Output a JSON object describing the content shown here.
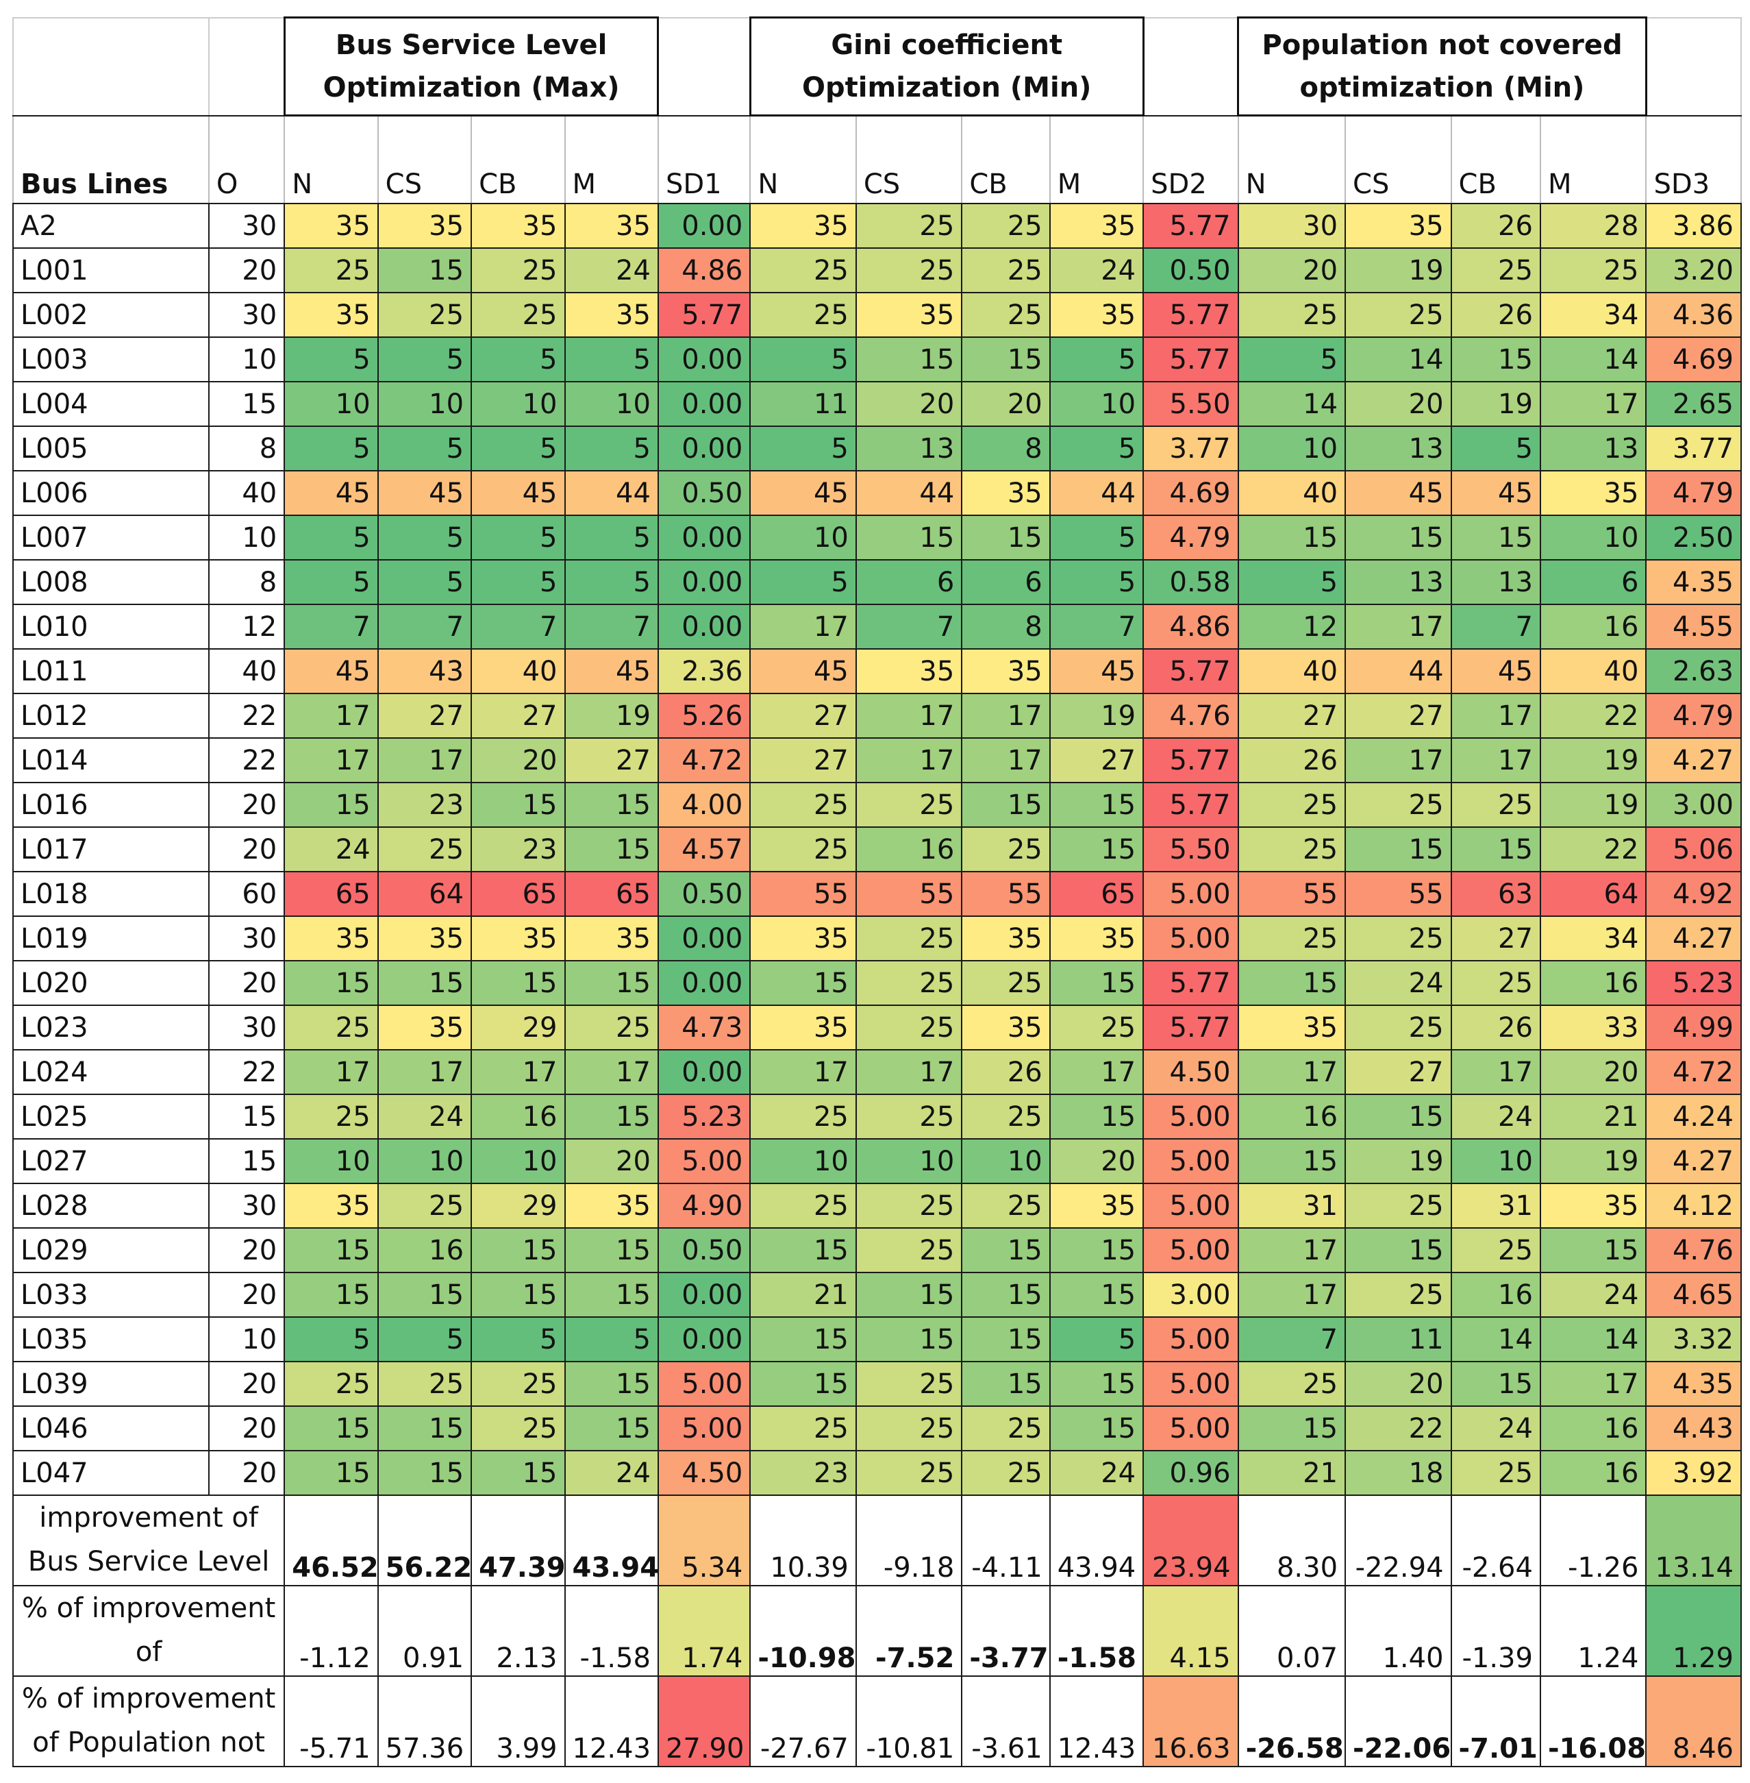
{
  "groups": {
    "bsl": "Bus Service Level Optimization (Max)",
    "gini": "Gini coefficient Optimization (Min)",
    "pop": "Population not covered optimization (Min)"
  },
  "columns": [
    "Bus Lines",
    "O",
    "N",
    "CS",
    "CB",
    "M",
    "SD1",
    "N",
    "CS",
    "CB",
    "M",
    "SD2",
    "N",
    "CS",
    "CB",
    "M",
    "SD3"
  ],
  "rows": [
    [
      "A2",
      "30",
      "35",
      "35",
      "35",
      "35",
      "0.00",
      "35",
      "25",
      "25",
      "35",
      "5.77",
      "30",
      "35",
      "26",
      "28",
      "3.86"
    ],
    [
      "L001",
      "20",
      "25",
      "15",
      "25",
      "24",
      "4.86",
      "25",
      "25",
      "25",
      "24",
      "0.50",
      "20",
      "19",
      "25",
      "25",
      "3.20"
    ],
    [
      "L002",
      "30",
      "35",
      "25",
      "25",
      "35",
      "5.77",
      "25",
      "35",
      "25",
      "35",
      "5.77",
      "25",
      "25",
      "26",
      "34",
      "4.36"
    ],
    [
      "L003",
      "10",
      "5",
      "5",
      "5",
      "5",
      "0.00",
      "5",
      "15",
      "15",
      "5",
      "5.77",
      "5",
      "14",
      "15",
      "14",
      "4.69"
    ],
    [
      "L004",
      "15",
      "10",
      "10",
      "10",
      "10",
      "0.00",
      "11",
      "20",
      "20",
      "10",
      "5.50",
      "14",
      "20",
      "19",
      "17",
      "2.65"
    ],
    [
      "L005",
      "8",
      "5",
      "5",
      "5",
      "5",
      "0.00",
      "5",
      "13",
      "8",
      "5",
      "3.77",
      "10",
      "13",
      "5",
      "13",
      "3.77"
    ],
    [
      "L006",
      "40",
      "45",
      "45",
      "45",
      "44",
      "0.50",
      "45",
      "44",
      "35",
      "44",
      "4.69",
      "40",
      "45",
      "45",
      "35",
      "4.79"
    ],
    [
      "L007",
      "10",
      "5",
      "5",
      "5",
      "5",
      "0.00",
      "10",
      "15",
      "15",
      "5",
      "4.79",
      "15",
      "15",
      "15",
      "10",
      "2.50"
    ],
    [
      "L008",
      "8",
      "5",
      "5",
      "5",
      "5",
      "0.00",
      "5",
      "6",
      "6",
      "5",
      "0.58",
      "5",
      "13",
      "13",
      "6",
      "4.35"
    ],
    [
      "L010",
      "12",
      "7",
      "7",
      "7",
      "7",
      "0.00",
      "17",
      "7",
      "8",
      "7",
      "4.86",
      "12",
      "17",
      "7",
      "16",
      "4.55"
    ],
    [
      "L011",
      "40",
      "45",
      "43",
      "40",
      "45",
      "2.36",
      "45",
      "35",
      "35",
      "45",
      "5.77",
      "40",
      "44",
      "45",
      "40",
      "2.63"
    ],
    [
      "L012",
      "22",
      "17",
      "27",
      "27",
      "19",
      "5.26",
      "27",
      "17",
      "17",
      "19",
      "4.76",
      "27",
      "27",
      "17",
      "22",
      "4.79"
    ],
    [
      "L014",
      "22",
      "17",
      "17",
      "20",
      "27",
      "4.72",
      "27",
      "17",
      "17",
      "27",
      "5.77",
      "26",
      "17",
      "17",
      "19",
      "4.27"
    ],
    [
      "L016",
      "20",
      "15",
      "23",
      "15",
      "15",
      "4.00",
      "25",
      "25",
      "15",
      "15",
      "5.77",
      "25",
      "25",
      "25",
      "19",
      "3.00"
    ],
    [
      "L017",
      "20",
      "24",
      "25",
      "23",
      "15",
      "4.57",
      "25",
      "16",
      "25",
      "15",
      "5.50",
      "25",
      "15",
      "15",
      "22",
      "5.06"
    ],
    [
      "L018",
      "60",
      "65",
      "64",
      "65",
      "65",
      "0.50",
      "55",
      "55",
      "55",
      "65",
      "5.00",
      "55",
      "55",
      "63",
      "64",
      "4.92"
    ],
    [
      "L019",
      "30",
      "35",
      "35",
      "35",
      "35",
      "0.00",
      "35",
      "25",
      "35",
      "35",
      "5.00",
      "25",
      "25",
      "27",
      "34",
      "4.27"
    ],
    [
      "L020",
      "20",
      "15",
      "15",
      "15",
      "15",
      "0.00",
      "15",
      "25",
      "25",
      "15",
      "5.77",
      "15",
      "24",
      "25",
      "16",
      "5.23"
    ],
    [
      "L023",
      "30",
      "25",
      "35",
      "29",
      "25",
      "4.73",
      "35",
      "25",
      "35",
      "25",
      "5.77",
      "35",
      "25",
      "26",
      "33",
      "4.99"
    ],
    [
      "L024",
      "22",
      "17",
      "17",
      "17",
      "17",
      "0.00",
      "17",
      "17",
      "26",
      "17",
      "4.50",
      "17",
      "27",
      "17",
      "20",
      "4.72"
    ],
    [
      "L025",
      "15",
      "25",
      "24",
      "16",
      "15",
      "5.23",
      "25",
      "25",
      "25",
      "15",
      "5.00",
      "16",
      "15",
      "24",
      "21",
      "4.24"
    ],
    [
      "L027",
      "15",
      "10",
      "10",
      "10",
      "20",
      "5.00",
      "10",
      "10",
      "10",
      "20",
      "5.00",
      "15",
      "19",
      "10",
      "19",
      "4.27"
    ],
    [
      "L028",
      "30",
      "35",
      "25",
      "29",
      "35",
      "4.90",
      "25",
      "25",
      "25",
      "35",
      "5.00",
      "31",
      "25",
      "31",
      "35",
      "4.12"
    ],
    [
      "L029",
      "20",
      "15",
      "16",
      "15",
      "15",
      "0.50",
      "15",
      "25",
      "15",
      "15",
      "5.00",
      "17",
      "15",
      "25",
      "15",
      "4.76"
    ],
    [
      "L033",
      "20",
      "15",
      "15",
      "15",
      "15",
      "0.00",
      "21",
      "15",
      "15",
      "15",
      "3.00",
      "17",
      "25",
      "16",
      "24",
      "4.65"
    ],
    [
      "L035",
      "10",
      "5",
      "5",
      "5",
      "5",
      "0.00",
      "15",
      "15",
      "15",
      "5",
      "5.00",
      "7",
      "11",
      "14",
      "14",
      "3.32"
    ],
    [
      "L039",
      "20",
      "25",
      "25",
      "25",
      "15",
      "5.00",
      "15",
      "25",
      "15",
      "15",
      "5.00",
      "25",
      "20",
      "15",
      "17",
      "4.35"
    ],
    [
      "L046",
      "20",
      "15",
      "15",
      "25",
      "15",
      "5.00",
      "25",
      "25",
      "25",
      "15",
      "5.00",
      "15",
      "22",
      "24",
      "16",
      "4.43"
    ],
    [
      "L047",
      "20",
      "15",
      "15",
      "15",
      "24",
      "4.50",
      "23",
      "25",
      "25",
      "24",
      "0.96",
      "21",
      "18",
      "25",
      "16",
      "3.92"
    ]
  ],
  "footer": [
    {
      "label": "improvement of Bus Service Level",
      "values": [
        "46.52",
        "56.22",
        "47.39",
        "43.94",
        "5.34",
        "10.39",
        "-9.18",
        "-4.11",
        "43.94",
        "23.94",
        "8.30",
        "-22.94",
        "-2.64",
        "-1.26",
        "13.14"
      ],
      "bold": [
        true,
        true,
        true,
        true,
        false,
        false,
        false,
        false,
        false,
        false,
        false,
        false,
        false,
        false,
        false
      ]
    },
    {
      "label": "% of improvement of",
      "values": [
        "-1.12",
        "0.91",
        "2.13",
        "-1.58",
        "1.74",
        "-10.98",
        "-7.52",
        "-3.77",
        "-1.58",
        "4.15",
        "0.07",
        "1.40",
        "-1.39",
        "1.24",
        "1.29"
      ],
      "bold": [
        false,
        false,
        false,
        false,
        false,
        true,
        true,
        true,
        true,
        false,
        false,
        false,
        false,
        false,
        false
      ]
    },
    {
      "label": "% of improvement of Population not",
      "values": [
        "-5.71",
        "57.36",
        "3.99",
        "12.43",
        "27.90",
        "-27.67",
        "-10.81",
        "-3.61",
        "12.43",
        "16.63",
        "-26.58",
        "-22.06",
        "-7.01",
        "-16.08",
        "8.46"
      ],
      "bold": [
        false,
        false,
        false,
        false,
        false,
        false,
        false,
        false,
        false,
        false,
        true,
        true,
        true,
        true,
        false
      ]
    }
  ],
  "footer_sd_colors": [
    [
      "#fac07e",
      "#f76d69",
      "#8fc97c"
    ],
    [
      "#e0e383",
      "#e4e383",
      "#63be7b"
    ],
    [
      "#f8696b",
      "#fba777",
      "#fba977"
    ]
  ]
}
